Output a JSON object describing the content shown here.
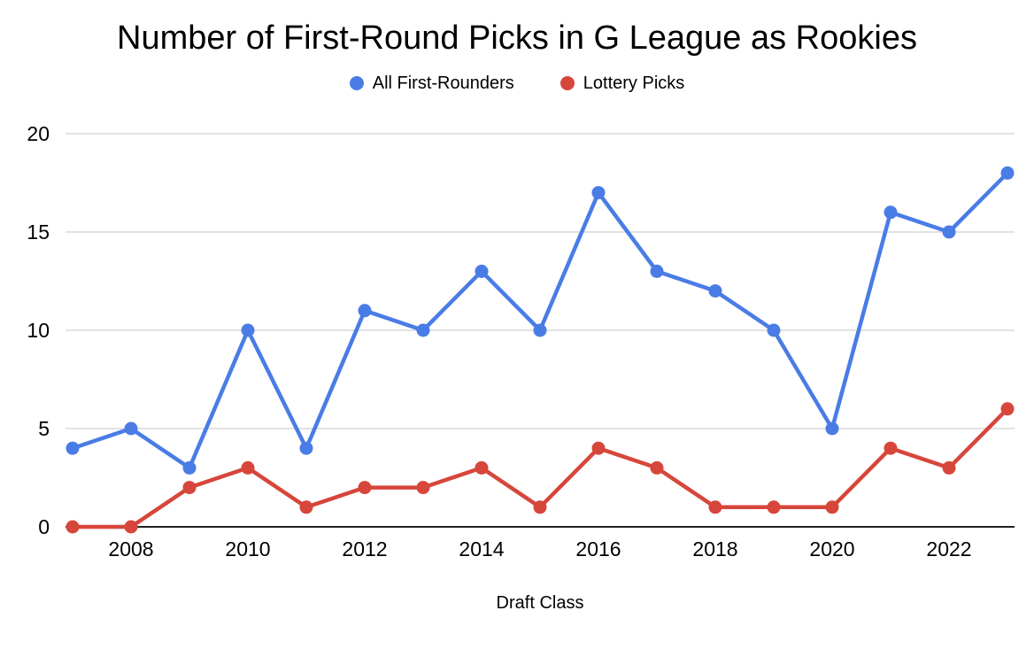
{
  "chart_data": {
    "type": "line",
    "title": "Number of First-Round Picks in G League as Rookies",
    "xlabel": "Draft Class",
    "ylabel": "",
    "x": [
      2007,
      2008,
      2009,
      2010,
      2011,
      2012,
      2013,
      2014,
      2015,
      2016,
      2017,
      2018,
      2019,
      2020,
      2021,
      2022,
      2023
    ],
    "xtick_labels": [
      "2008",
      "2010",
      "2012",
      "2014",
      "2016",
      "2018",
      "2020",
      "2022"
    ],
    "yticks": [
      0,
      5,
      10,
      15,
      20
    ],
    "ylim": [
      0,
      20
    ],
    "grid": true,
    "legend_position": "top",
    "series": [
      {
        "name": "All First-Rounders",
        "color": "#4A7CE6",
        "values": [
          4,
          5,
          3,
          10,
          4,
          11,
          10,
          13,
          10,
          17,
          13,
          12,
          10,
          5,
          16,
          15,
          18
        ]
      },
      {
        "name": "Lottery Picks",
        "color": "#D7463B",
        "values": [
          0,
          0,
          2,
          3,
          1,
          2,
          2,
          3,
          1,
          4,
          3,
          1,
          1,
          1,
          4,
          3,
          6
        ]
      }
    ]
  },
  "colors": {
    "background": "#ffffff",
    "gridline": "#d9d9d9",
    "axis_line": "#222222",
    "text": "#000000"
  }
}
